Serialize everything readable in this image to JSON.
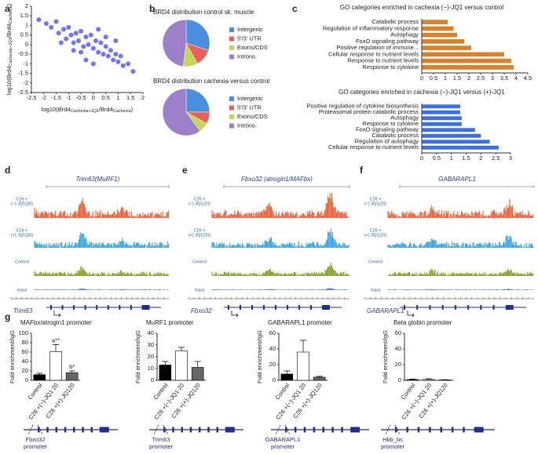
{
  "panel_labels": [
    "a",
    "b",
    "c",
    "d",
    "e",
    "f",
    "g"
  ],
  "chart_data": [
    {
      "type": "scatter",
      "xlabel": [
        "log10(Brd4",
        "Cachexia+JQ1",
        "/Brd4",
        "Cachexia",
        ")"
      ],
      "ylabel": [
        "log10(Brd4",
        "Cachexia+JQ1",
        "/Brd4",
        "Cachexia",
        ")"
      ],
      "color": "#2f3cff",
      "x": [
        -2.2,
        -1.9,
        -1.7,
        -1.5,
        -1.4,
        -1.2,
        -1.1,
        -1.0,
        -0.9,
        -0.8,
        -0.7,
        -0.6,
        -0.5,
        -0.4,
        -0.3,
        -0.2,
        -0.1,
        0,
        0.1,
        0.2,
        0.3,
        0.4,
        0.5,
        0.6,
        0.7,
        0.8,
        0.9,
        1.0,
        1.1,
        1.2,
        1.4,
        1.6,
        -0.5,
        0.2,
        -0.8,
        0.5,
        -0.3,
        0.9,
        -1.3,
        0.0
      ],
      "y": [
        1.3,
        1.1,
        0.9,
        1.2,
        0.6,
        0.8,
        0.3,
        0.9,
        0.5,
        0.1,
        0.6,
        0.2,
        0.7,
        -0.1,
        0.4,
        0.0,
        0.5,
        -0.2,
        0.2,
        -0.4,
        0.1,
        -0.5,
        -0.1,
        -0.6,
        -0.3,
        -0.8,
        -0.5,
        -0.9,
        -0.6,
        -1.1,
        -1.0,
        -1.4,
        -0.4,
        0.8,
        -0.3,
        0.4,
        -0.8,
        0.2,
        0.1,
        -1.0
      ],
      "xlim": [
        -2.5,
        2
      ],
      "xticks": [
        -2.5,
        -2,
        -1.5,
        -1,
        -0.5,
        0,
        0.5,
        1,
        1.5,
        2
      ],
      "ylim": [
        -2.5,
        2
      ],
      "yticks": [
        -2.5,
        -2,
        -1.5,
        -1,
        -0.5,
        0,
        0.5,
        1,
        1.5,
        2
      ]
    },
    {
      "type": "pie",
      "title": "BRD4 distribution control sk. muscle",
      "categories": [
        "Intergenic",
        "5′/3′ UTR",
        "Exons/CDS",
        "Introns"
      ],
      "values": [
        30,
        12,
        10,
        48
      ],
      "colors": [
        "#4a8ee0",
        "#e8605a",
        "#c6d45a",
        "#9b7fc8"
      ]
    },
    {
      "type": "pie",
      "title": "BRD4 distribution cachexia versus control",
      "categories": [
        "Intergenic",
        "5′/3′ UTR",
        "Exons/CDS",
        "Introns"
      ],
      "values": [
        25,
        8,
        7,
        60
      ],
      "colors": [
        "#4a8ee0",
        "#e8605a",
        "#c6d45a",
        "#9b7fc8"
      ]
    },
    {
      "type": "hbar",
      "title": "GO categories enriched in cachexia (−)-JQ1 versus control",
      "categories": [
        "Catabolic process",
        "Regulation of inflammatory response",
        "Autophagy",
        "FoxO signaling pathway",
        "Positive regulation of immune...",
        "Cellular response to nutrient levels",
        "Response to nutrient levels",
        "Response to cytokine"
      ],
      "values": [
        1.1,
        1.35,
        1.5,
        1.8,
        2.1,
        3.5,
        3.8,
        3.9
      ],
      "color": "#d9822b",
      "xlim": [
        0,
        4.5
      ],
      "xticks": [
        0,
        0.5,
        1,
        1.5,
        2,
        2.5,
        3,
        3.5,
        4,
        4.5
      ]
    },
    {
      "type": "hbar",
      "title": "GO categories enriched in cachexia (−)-JQ1 versus (+)-JQ1",
      "categories": [
        "Positive regulation of cytokine biosynthesis",
        "Proteasomal protein catabolic process",
        "Autophagy",
        "Response to cytokine",
        "FoxO signaling pathway",
        "Catabolic process",
        "Regulation of autophagy",
        "Cellular response to nutrient levels"
      ],
      "values": [
        1.3,
        1.3,
        1.35,
        1.35,
        1.8,
        2.0,
        2.3,
        2.6
      ],
      "color": "#3d6fe0",
      "xlim": [
        0,
        3
      ],
      "xticks": [
        0,
        0.5,
        1,
        1.5,
        2,
        2.5,
        3
      ]
    },
    {
      "type": "bar",
      "title": "MAFbx/atrogin1 promoter",
      "ylabel": "Fold enrichment/IgG",
      "categories": [
        "Control",
        "C26 +(−)-JQ1 20",
        "C26 +(+)-JQ120"
      ],
      "values": [
        12,
        61,
        16
      ],
      "errors": [
        3,
        15,
        4
      ],
      "annotations": [
        null,
        "a**",
        "b*"
      ],
      "colors": [
        "#000000",
        "#ffffff",
        "#666666"
      ],
      "ylim": [
        0,
        100
      ],
      "yticks": [
        0,
        20,
        40,
        60,
        80,
        100
      ]
    },
    {
      "type": "bar",
      "title": "MuRF1 promoter",
      "ylabel": "Fold enrichment/IgG",
      "categories": [
        "Control",
        "C26 +(−)-JQ1 20",
        "C26 +(+)-JQ120"
      ],
      "values": [
        13,
        25,
        11
      ],
      "errors": [
        3,
        3,
        5
      ],
      "colors": [
        "#000000",
        "#ffffff",
        "#666666"
      ],
      "ylim": [
        0,
        40
      ],
      "yticks": [
        0,
        10,
        20,
        30,
        40
      ]
    },
    {
      "type": "bar",
      "title": "GABARAPL1 promoter",
      "ylabel": "Fold enrichment/IgG",
      "categories": [
        "Control",
        "C26 +(−)-JQ1 20",
        "C26 +(+)-JQ120"
      ],
      "values": [
        8,
        36,
        4
      ],
      "errors": [
        4,
        15,
        1
      ],
      "colors": [
        "#000000",
        "#ffffff",
        "#666666"
      ],
      "ylim": [
        0,
        60
      ],
      "yticks": [
        0,
        20,
        40,
        60
      ]
    },
    {
      "type": "bar",
      "title": "Beta globin promoter",
      "ylabel": "Fold enrichment/IgG",
      "categories": [
        "Control",
        "C26 +(−)-JQ1 20",
        "C26 +(+)-JQ120"
      ],
      "values": [
        1,
        1,
        0.5
      ],
      "errors": [
        0.5,
        1,
        0.3
      ],
      "colors": [
        "#000000",
        "#ffffff",
        "#666666"
      ],
      "ylim": [
        0,
        60
      ],
      "yticks": [
        0,
        20,
        40,
        60
      ]
    }
  ],
  "tracks": [
    {
      "title": "Trim63(MuRF1)",
      "gene": "Trim63",
      "labels": [
        [
          "C26 +",
          "(−) JQ1(20)"
        ],
        [
          "C26 +",
          "(+) JQ1(20)"
        ],
        [
          "Control"
        ],
        [
          "Input"
        ]
      ]
    },
    {
      "title": "Fbxo32 (atrogin1/MAFbx)",
      "gene": "Fbxo32",
      "labels": [
        [
          "C26 +",
          "(−) JQ1(20)"
        ],
        [
          "C26 +",
          "(+) JQ1(20)"
        ],
        [
          "Control"
        ],
        [
          "Input"
        ]
      ]
    },
    {
      "title": "GABARAPL1",
      "gene": "GABARAPL1",
      "labels": [
        [
          "C26 +",
          "(−) JQ1(20)"
        ],
        [
          "C26 +",
          "(+) JQ1(20)"
        ],
        [
          "Control"
        ],
        [
          "Input"
        ]
      ]
    }
  ],
  "promoters": [
    [
      "Fbxo32",
      "promoter"
    ],
    [
      "Trim63",
      "promoter"
    ],
    [
      "GABARAPL1",
      "promoter"
    ],
    [
      "Hbb_bs",
      "promoter"
    ]
  ]
}
